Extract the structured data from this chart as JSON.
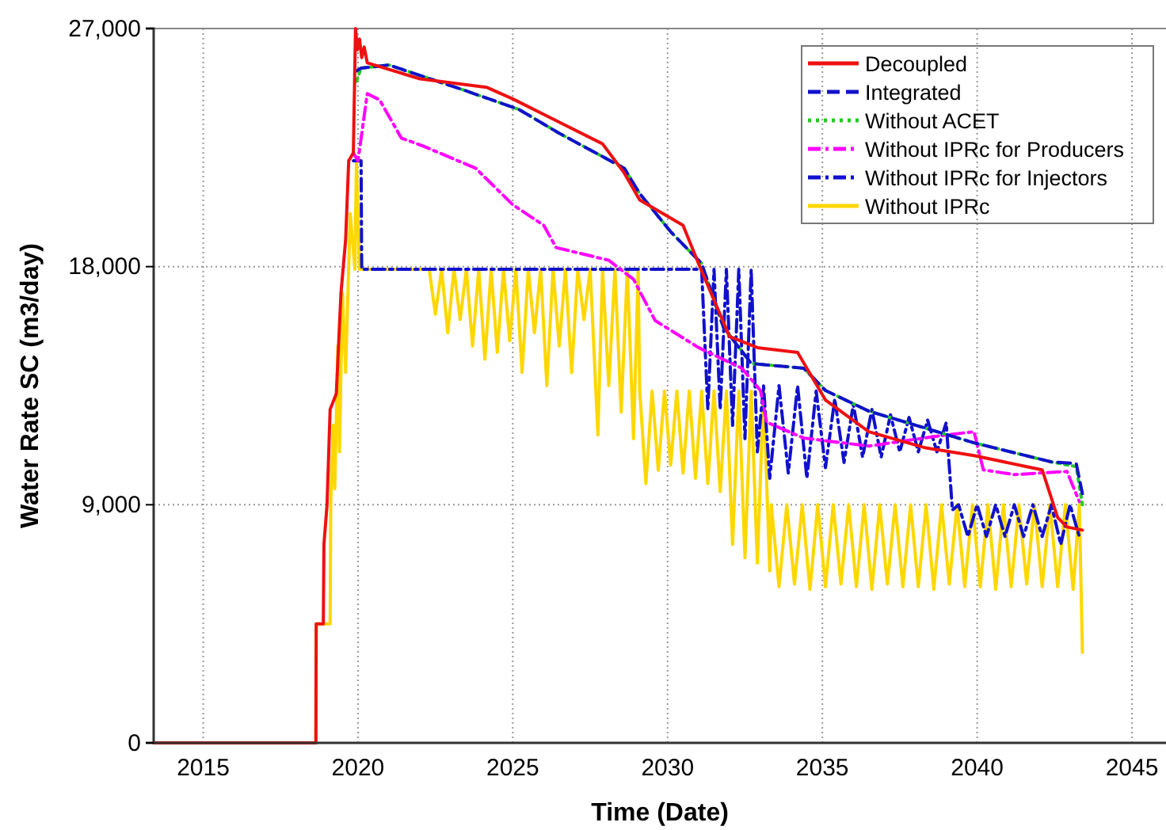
{
  "chart_data": {
    "type": "line",
    "xlabel": "Time (Date)",
    "ylabel": "Water Rate SC (m3/day)",
    "xlim": [
      2013.4,
      2046.1
    ],
    "xticks": [
      2015,
      2020,
      2025,
      2030,
      2035,
      2040,
      2045
    ],
    "ylim": [
      0,
      27000
    ],
    "yticks": [
      0,
      {
        "value": 9000,
        "label": "9,000"
      },
      {
        "value": 18000,
        "label": "18,000"
      },
      {
        "value": 27000,
        "label": "27,000"
      }
    ],
    "grid": true,
    "legend": "top right",
    "marker": "none",
    "series": [
      {
        "name": "Decoupled",
        "color": "#ee1111",
        "line_style": "solid",
        "x": [
          2013.4,
          2018.64,
          2018.65,
          2018.88,
          2018.9,
          2019.0,
          2019.1,
          2019.3,
          2019.45,
          2019.6,
          2019.7,
          2019.85,
          2019.92,
          2019.98,
          2020.05,
          2020.12,
          2020.2,
          2020.3,
          2022.0,
          2024.15,
          2025.0,
          2026.5,
          2027.9,
          2028.6,
          2029.1,
          2030.5,
          2031.0,
          2032.0,
          2032.9,
          2034.2,
          2035.1,
          2036.5,
          2038.3,
          2039.9,
          2041.6,
          2042.1,
          2042.6,
          2042.9,
          2043.4
        ],
        "values": [
          0,
          0,
          4500,
          4500,
          7500,
          9000,
          12600,
          13200,
          17000,
          19000,
          22000,
          22300,
          27000,
          26200,
          26600,
          25900,
          26300,
          25700,
          25100,
          24780,
          24340,
          23460,
          22640,
          21540,
          20520,
          19560,
          18120,
          15360,
          14940,
          14760,
          12960,
          11760,
          11160,
          10860,
          10440,
          10320,
          8520,
          8160,
          8040
        ]
      },
      {
        "name": "Integrated",
        "color": "#1111cc",
        "line_style": "dashed",
        "x": [
          2019.95,
          2020.1,
          2021.0,
          2023.45,
          2025.2,
          2026.5,
          2028.6,
          2029.1,
          2030.1,
          2031.1,
          2031.8,
          2032.7,
          2034.4,
          2035.1,
          2036.5,
          2038.2,
          2039.9,
          2042.4,
          2043.2,
          2043.4
        ],
        "values": [
          25400,
          25500,
          25620,
          24660,
          23940,
          23040,
          21720,
          20760,
          19320,
          18120,
          15720,
          14340,
          14160,
          13320,
          12540,
          11940,
          11340,
          10620,
          10560,
          9420
        ]
      },
      {
        "name": "Without ACET",
        "color": "#22cc22",
        "line_style": "dotted",
        "x": [
          2019.95,
          2020.1,
          2021.0,
          2023.45,
          2025.2,
          2026.5,
          2028.6,
          2029.1,
          2030.1,
          2031.1,
          2031.8,
          2032.7,
          2034.4,
          2035.1,
          2036.5,
          2038.2,
          2039.9,
          2042.4,
          2043.2,
          2043.4
        ],
        "values": [
          25000,
          25500,
          25620,
          24660,
          23940,
          23040,
          21720,
          20760,
          19320,
          18120,
          15720,
          14340,
          14160,
          13320,
          12540,
          11940,
          11340,
          10620,
          10440,
          9000
        ]
      },
      {
        "name": "Without IPRc for Producers",
        "color": "#ff00ff",
        "line_style": "dashdot",
        "x": [
          2019.85,
          2020.0,
          2020.3,
          2020.7,
          2021.4,
          2022.1,
          2023.8,
          2025.0,
          2026.0,
          2026.4,
          2028.1,
          2028.9,
          2029.6,
          2031.0,
          2032.4,
          2033.0,
          2033.2,
          2034.4,
          2036.5,
          2039.0,
          2039.9,
          2040.2,
          2041.2,
          2042.9,
          2043.3
        ],
        "values": [
          22300,
          22000,
          24540,
          24300,
          22860,
          22560,
          21720,
          20340,
          19560,
          18720,
          18240,
          17520,
          15960,
          14940,
          14160,
          13320,
          12120,
          11520,
          11220,
          11640,
          11760,
          10320,
          10140,
          10260,
          9120
        ]
      },
      {
        "name": "Without IPRc for Injectors",
        "color": "#1111cc",
        "line_style": "dashdot",
        "x": [
          2019.85,
          2020.1,
          2020.12,
          2031.1,
          2031.3,
          2031.5,
          2031.7,
          2031.9,
          2032.1,
          2032.3,
          2032.5,
          2032.7,
          2032.9,
          2033.1,
          2033.3,
          2033.6,
          2033.9,
          2034.2,
          2034.5,
          2034.8,
          2035.1,
          2035.4,
          2035.7,
          2036.0,
          2036.3,
          2036.6,
          2036.9,
          2037.2,
          2037.5,
          2037.8,
          2038.1,
          2038.4,
          2038.7,
          2039.0,
          2039.2,
          2039.4,
          2039.7,
          2040.0,
          2040.3,
          2040.6,
          2040.9,
          2041.2,
          2041.5,
          2041.8,
          2042.1,
          2042.4,
          2042.7,
          2043.0,
          2043.3
        ],
        "values": [
          22000,
          22000,
          17900,
          17900,
          12600,
          17900,
          12600,
          17900,
          12000,
          17900,
          11500,
          17900,
          11000,
          13500,
          10000,
          13500,
          10200,
          13500,
          10000,
          13300,
          10400,
          13000,
          10600,
          12800,
          10800,
          12600,
          10800,
          12400,
          11000,
          12300,
          11000,
          12200,
          11000,
          12100,
          8800,
          9000,
          7800,
          9000,
          7800,
          9000,
          7800,
          9000,
          7800,
          9000,
          7800,
          9000,
          7500,
          9000,
          7800
        ]
      },
      {
        "name": "Without IPRc",
        "color": "#ffd700",
        "line_style": "solid",
        "x": [
          2013.4,
          2018.64,
          2018.65,
          2019.1,
          2019.12,
          2019.2,
          2019.25,
          2019.35,
          2019.4,
          2019.5,
          2019.6,
          2019.75,
          2019.9,
          2019.95,
          2020.05,
          2022.3,
          2022.5,
          2022.7,
          2022.9,
          2023.1,
          2023.3,
          2023.5,
          2023.7,
          2023.9,
          2024.1,
          2024.3,
          2024.5,
          2024.7,
          2024.9,
          2025.1,
          2025.3,
          2025.5,
          2025.7,
          2025.9,
          2026.1,
          2026.3,
          2026.5,
          2026.7,
          2026.9,
          2027.1,
          2027.3,
          2027.5,
          2027.75,
          2027.9,
          2028.1,
          2028.3,
          2028.5,
          2028.7,
          2028.9,
          2029.05,
          2029.1,
          2029.3,
          2029.5,
          2029.7,
          2029.9,
          2030.1,
          2030.3,
          2030.5,
          2030.7,
          2030.9,
          2031.1,
          2031.3,
          2031.5,
          2031.7,
          2031.9,
          2032.1,
          2032.3,
          2032.5,
          2032.7,
          2032.9,
          2033.1,
          2033.3,
          2033.35,
          2033.6,
          2033.85,
          2034.1,
          2034.35,
          2034.6,
          2034.85,
          2035.1,
          2035.35,
          2035.6,
          2035.85,
          2036.1,
          2036.35,
          2036.6,
          2036.85,
          2037.1,
          2037.35,
          2037.6,
          2037.85,
          2038.1,
          2038.35,
          2038.6,
          2038.85,
          2039.1,
          2039.35,
          2039.6,
          2039.85,
          2040.1,
          2040.35,
          2040.6,
          2040.85,
          2041.1,
          2041.35,
          2041.6,
          2041.85,
          2042.1,
          2042.35,
          2042.6,
          2042.85,
          2043.1,
          2043.3,
          2043.4
        ],
        "values": [
          0,
          0,
          4500,
          4500,
          9000,
          12000,
          9600,
          15000,
          11000,
          17000,
          14000,
          20000,
          17900,
          21960,
          17900,
          17900,
          16200,
          17900,
          15500,
          17900,
          16000,
          17900,
          15000,
          17900,
          14500,
          17900,
          14760,
          17900,
          15200,
          17900,
          14000,
          17900,
          15500,
          17900,
          13500,
          17900,
          15000,
          17900,
          14000,
          17900,
          16000,
          17900,
          11640,
          17900,
          13500,
          17900,
          12500,
          17900,
          11500,
          17900,
          13300,
          9800,
          13300,
          10300,
          13300,
          10500,
          13300,
          10200,
          13300,
          10000,
          13300,
          9800,
          13300,
          9500,
          13300,
          7500,
          13300,
          7000,
          13300,
          6800,
          13300,
          6500,
          9000,
          5900,
          9000,
          6000,
          9000,
          5800,
          9000,
          5900,
          9000,
          6000,
          9000,
          5900,
          9000,
          5800,
          9000,
          6000,
          9000,
          5900,
          9000,
          5900,
          9000,
          5800,
          9000,
          6000,
          9000,
          5900,
          9000,
          5900,
          9000,
          5800,
          9000,
          5900,
          9000,
          6000,
          9000,
          5900,
          9000,
          5900,
          9000,
          5800,
          9000,
          3420
        ]
      }
    ]
  }
}
